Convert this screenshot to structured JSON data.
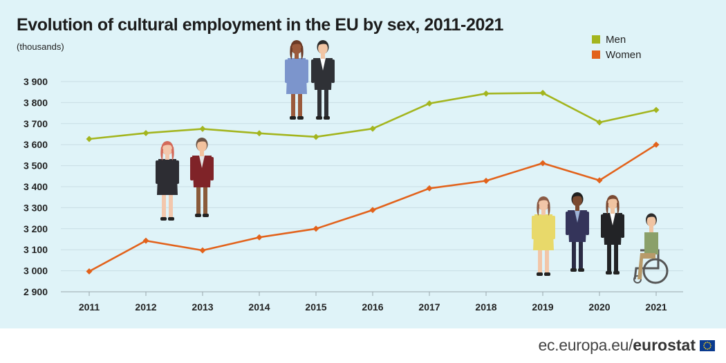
{
  "chart_data": {
    "type": "line",
    "title": "Evolution of cultural employment in the EU by sex, 2011-2021",
    "unit_label": "(thousands)",
    "categories": [
      "2011",
      "2012",
      "2013",
      "2014",
      "2015",
      "2016",
      "2017",
      "2018",
      "2019",
      "2020",
      "2021"
    ],
    "y_ticks": [
      "3 900",
      "3 800",
      "3 700",
      "3 600",
      "3 500",
      "3 400",
      "3 300",
      "3 200",
      "3 100",
      "3 000",
      "2 900"
    ],
    "ylim": [
      2900,
      3900
    ],
    "series": [
      {
        "name": "Men",
        "color": "#a3b51e",
        "values": [
          3627,
          3655,
          3675,
          3654,
          3637,
          3676,
          3796,
          3843,
          3846,
          3706,
          3765
        ]
      },
      {
        "name": "Women",
        "color": "#e2621b",
        "values": [
          2997,
          3143,
          3097,
          3159,
          3200,
          3289,
          3392,
          3428,
          3512,
          3430,
          3600
        ]
      }
    ],
    "grid": true,
    "legend_position": "top-right"
  },
  "footer": {
    "domain": "ec.europa.eu/",
    "brand": "eurostat"
  }
}
